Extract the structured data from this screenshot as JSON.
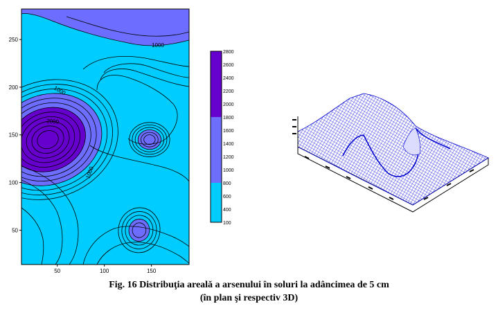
{
  "caption": {
    "line1": "Fig. 16 Distribuţia arealǎ a arsenului în soluri la adâncimea de 5 cm",
    "line2": "(în plan şi respectiv 3D)"
  },
  "chart_data": [
    {
      "type": "heatmap",
      "subtype": "filled-contour",
      "title": "",
      "xlabel": "",
      "ylabel": "",
      "xlim": [
        12,
        190
      ],
      "ylim": [
        14,
        282
      ],
      "x_ticks": [
        50,
        100,
        150
      ],
      "y_ticks": [
        50,
        100,
        150,
        200,
        250
      ],
      "contour_labels": [
        "1000",
        "1000",
        "2000",
        "1000"
      ],
      "legend_levels": [
        100,
        400,
        600,
        800,
        1000,
        1200,
        1400,
        1600,
        1800,
        2000,
        2200,
        2400,
        2600,
        2800
      ],
      "legend_colors": [
        "#00ccff",
        "#00ccff",
        "#00ccff",
        "#00ccff",
        "#6d6dff",
        "#6d6dff",
        "#6d6dff",
        "#6d6dff",
        "#6d6dff",
        "#6600cc",
        "#6600cc",
        "#6600cc",
        "#6600cc",
        "#6600cc"
      ],
      "peaks": [
        {
          "x": 40,
          "y": 145,
          "value": 2900
        },
        {
          "x": 148,
          "y": 145,
          "value": 1800
        },
        {
          "x": 137,
          "y": 50,
          "value": 2000
        }
      ],
      "high_zones": [
        {
          "side": "top",
          "value": 1200
        }
      ],
      "colors": {
        "low": "#00ccff",
        "mid": "#6d6dff",
        "high": "#6600cc"
      },
      "grid": false
    },
    {
      "type": "surface-3d",
      "title": "",
      "axis_tick_labels": "unreadable",
      "mesh_color": "#0000ee",
      "grid": false
    }
  ]
}
